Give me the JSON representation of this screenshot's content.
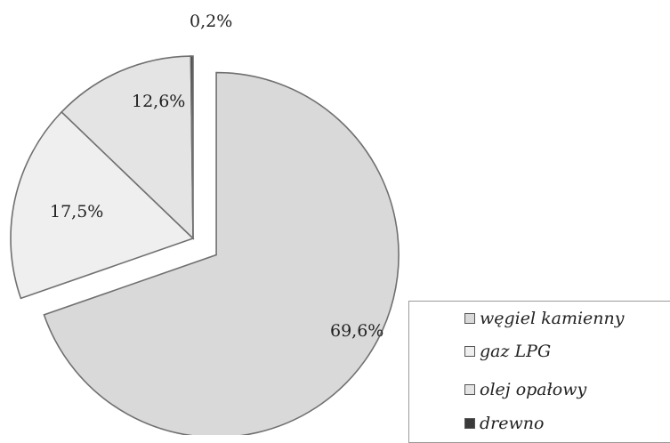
{
  "chart_data": {
    "type": "pie",
    "title": "",
    "unit": "%",
    "slices": [
      {
        "label": "węgiel kamienny",
        "value": 69.6,
        "value_label": "69,6%",
        "color": "#d9d9d9",
        "exploded": true
      },
      {
        "label": "gaz LPG",
        "value": 17.5,
        "value_label": "17,5%",
        "color": "#efefef",
        "exploded": false
      },
      {
        "label": "olej opałowy",
        "value": 12.6,
        "value_label": "12,6%",
        "color": "#e4e4e4",
        "exploded": false
      },
      {
        "label": "drewno",
        "value": 0.2,
        "value_label": "0,2%",
        "color": "#3a3a3a",
        "exploded": false
      }
    ],
    "legend": {
      "placement": "bottom-right",
      "entries": [
        "węgiel kamienny",
        "gaz LPG",
        "olej opałowy",
        "drewno"
      ]
    }
  }
}
